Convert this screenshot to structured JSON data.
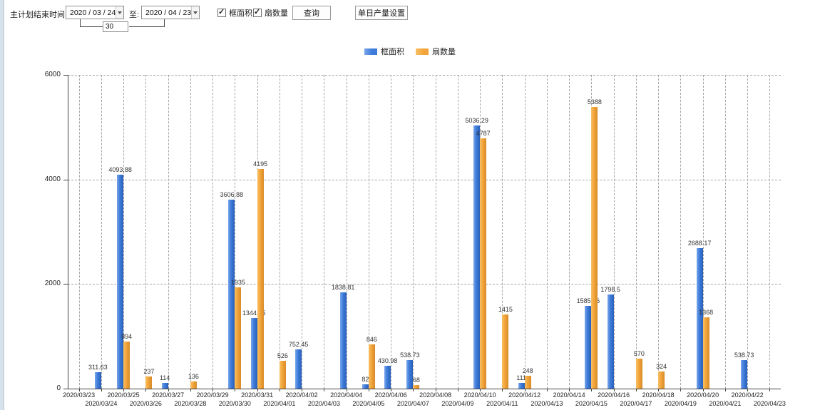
{
  "toolbar": {
    "end_time_label": "主计划结束时间:",
    "date_from": "2020 / 03 / 24",
    "to_label": "至:",
    "date_to": "2020 / 04 / 23",
    "interval_days": "30",
    "checkboxes": [
      {
        "label": "框面积",
        "checked": true
      },
      {
        "label": "扇数量",
        "checked": true
      }
    ],
    "query_button": "查询",
    "daily_output_button": "单日产量设置"
  },
  "chart_data": {
    "type": "bar",
    "title": "",
    "xlabel": "",
    "ylabel": "",
    "ylim": [
      0,
      6000
    ],
    "yticks": [
      0,
      2000,
      4000,
      6000
    ],
    "grid": true,
    "legend_position": "top-center",
    "categories": [
      "2020/03/23",
      "2020/03/24",
      "2020/03/25",
      "2020/03/26",
      "2020/03/27",
      "2020/03/28",
      "2020/03/29",
      "2020/03/30",
      "2020/03/31",
      "2020/04/01",
      "2020/04/02",
      "2020/04/03",
      "2020/04/04",
      "2020/04/05",
      "2020/04/06",
      "2020/04/07",
      "2020/04/08",
      "2020/04/09",
      "2020/04/10",
      "2020/04/11",
      "2020/04/12",
      "2020/04/13",
      "2020/04/14",
      "2020/04/15",
      "2020/04/16",
      "2020/04/17",
      "2020/04/18",
      "2020/04/19",
      "2020/04/20",
      "2020/04/21",
      "2020/04/22",
      "2020/04/23"
    ],
    "series": [
      {
        "name": "框面积",
        "color": "#3d7bda",
        "values": [
          null,
          311.63,
          4093.88,
          null,
          114,
          null,
          null,
          3606.88,
          1344.95,
          null,
          752.45,
          null,
          1838.81,
          82,
          430.98,
          538.73,
          null,
          null,
          5036.29,
          null,
          111,
          null,
          null,
          1585.96,
          1798.5,
          null,
          null,
          null,
          2688.17,
          null,
          538.73,
          null
        ]
      },
      {
        "name": "扇数量",
        "color": "#f2a53a",
        "values": [
          null,
          null,
          894,
          237,
          null,
          136,
          null,
          1935,
          4195,
          526,
          null,
          null,
          null,
          846,
          null,
          68,
          null,
          null,
          4787,
          1415,
          248,
          null,
          null,
          5388,
          null,
          570,
          324,
          null,
          1368,
          null,
          null,
          null
        ]
      }
    ]
  }
}
